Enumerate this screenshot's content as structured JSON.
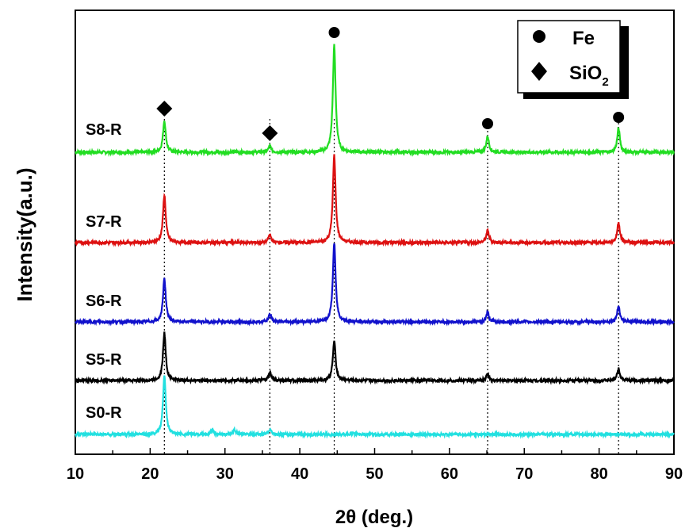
{
  "chart_data": {
    "type": "line",
    "xlabel": "2θ (deg.)",
    "ylabel": "Intensity(a.u.)",
    "xlim": [
      10,
      90
    ],
    "xticks": [
      "10",
      "20",
      "30",
      "40",
      "50",
      "60",
      "70",
      "80",
      "90"
    ],
    "grid": false,
    "legend_position": "top-right",
    "legend": [
      {
        "marker": "circle",
        "label": "Fe"
      },
      {
        "marker": "diamond",
        "label": "SiO",
        "subscript": "2"
      }
    ],
    "reference_lines_2theta": [
      21.9,
      36.0,
      44.6,
      65.1,
      82.6
    ],
    "phase_markers": [
      {
        "marker": "diamond",
        "phase": "SiO2",
        "x": 21.9
      },
      {
        "marker": "diamond",
        "phase": "SiO2",
        "x": 36.0
      },
      {
        "marker": "circle",
        "phase": "Fe",
        "x": 44.6
      },
      {
        "marker": "circle",
        "phase": "Fe",
        "x": 65.1
      },
      {
        "marker": "circle",
        "phase": "Fe",
        "x": 82.6
      }
    ],
    "series": [
      {
        "name": "S8-R",
        "color": "#22dd22",
        "peaks": [
          [
            21.9,
            0.4
          ],
          [
            36.0,
            0.08
          ],
          [
            44.6,
            1.35
          ],
          [
            65.1,
            0.2
          ],
          [
            82.6,
            0.3
          ]
        ]
      },
      {
        "name": "S7-R",
        "color": "#dd1111",
        "peaks": [
          [
            21.9,
            0.6
          ],
          [
            36.0,
            0.1
          ],
          [
            44.6,
            1.1
          ],
          [
            65.1,
            0.15
          ],
          [
            82.6,
            0.25
          ]
        ]
      },
      {
        "name": "S6-R",
        "color": "#1111cc",
        "peaks": [
          [
            21.9,
            0.55
          ],
          [
            36.0,
            0.1
          ],
          [
            44.6,
            1.0
          ],
          [
            65.1,
            0.12
          ],
          [
            82.6,
            0.2
          ]
        ]
      },
      {
        "name": "S5-R",
        "color": "#000000",
        "peaks": [
          [
            21.9,
            0.6
          ],
          [
            36.0,
            0.1
          ],
          [
            44.6,
            0.5
          ],
          [
            65.1,
            0.08
          ],
          [
            82.6,
            0.15
          ]
        ]
      },
      {
        "name": "S0-R",
        "color": "#22e0e0",
        "peaks": [
          [
            21.9,
            0.75
          ],
          [
            28.3,
            0.05
          ],
          [
            31.3,
            0.06
          ],
          [
            36.0,
            0.07
          ],
          [
            47.0,
            0.02
          ]
        ]
      }
    ]
  }
}
